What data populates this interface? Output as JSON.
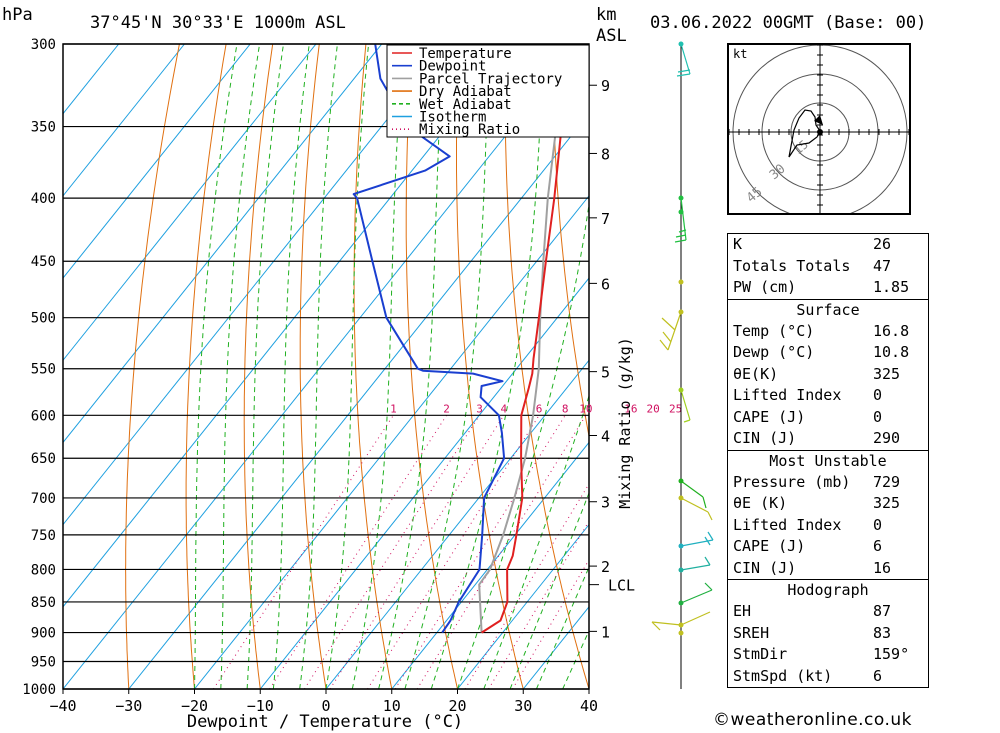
{
  "header": {
    "location": "37°45'N  30°33'E  1000m  ASL",
    "datetime": "03.06.2022  00GMT  (Base: 00)",
    "hpa_unit": "hPa",
    "km_unit": "km",
    "asl_unit": "ASL"
  },
  "chart_data": {
    "type": "skew-t",
    "xlabel": "Dewpoint / Temperature (°C)",
    "ylabel_right": "Mixing Ratio (g/kg)",
    "pressure_levels": [
      300,
      350,
      400,
      450,
      500,
      550,
      600,
      650,
      700,
      750,
      800,
      850,
      900,
      950,
      1000
    ],
    "temp_ticks": [
      -40,
      -30,
      -20,
      -10,
      0,
      10,
      20,
      30,
      40
    ],
    "km_ticks": [
      {
        "label": "9",
        "p": 324
      },
      {
        "label": "8",
        "p": 368
      },
      {
        "label": "7",
        "p": 415
      },
      {
        "label": "6",
        "p": 469
      },
      {
        "label": "5",
        "p": 553
      },
      {
        "label": "4",
        "p": 623
      },
      {
        "label": "3",
        "p": 705
      },
      {
        "label": "2",
        "p": 795
      },
      {
        "label": "1",
        "p": 898
      }
    ],
    "lcl": {
      "label": "LCL",
      "p": 823
    },
    "mixing_ratio_labels": [
      "1",
      "2",
      "3",
      "4",
      "6",
      "8",
      "10",
      "16",
      "20",
      "25"
    ],
    "legend": [
      {
        "name": "Temperature",
        "color": "#e02020"
      },
      {
        "name": "Dewpoint",
        "color": "#1a3fd0"
      },
      {
        "name": "Parcel Trajectory",
        "color": "#a0a0a0"
      },
      {
        "name": "Dry Adiabat",
        "color": "#e07010"
      },
      {
        "name": "Wet Adiabat",
        "color": "#20b020"
      },
      {
        "name": "Isotherm",
        "color": "#1ea0e0"
      },
      {
        "name": "Mixing Ratio",
        "color": "#d01060"
      }
    ],
    "temperature": [
      [
        900,
        16.8
      ],
      [
        880,
        18.2
      ],
      [
        850,
        17.0
      ],
      [
        800,
        13.0
      ],
      [
        780,
        12.2
      ],
      [
        750,
        10.2
      ],
      [
        700,
        6.6
      ],
      [
        650,
        1.6
      ],
      [
        600,
        -3.6
      ],
      [
        570,
        -5.8
      ],
      [
        555,
        -7.0
      ],
      [
        540,
        -8.6
      ],
      [
        500,
        -12.8
      ],
      [
        450,
        -18.6
      ],
      [
        400,
        -25.0
      ],
      [
        350,
        -32.6
      ],
      [
        300,
        -41.6
      ]
    ],
    "dewpoint": [
      [
        900,
        10.8
      ],
      [
        880,
        10.6
      ],
      [
        850,
        9.6
      ],
      [
        800,
        8.8
      ],
      [
        750,
        5.0
      ],
      [
        700,
        0.8
      ],
      [
        650,
        -1.0
      ],
      [
        620,
        -4.4
      ],
      [
        600,
        -7.0
      ],
      [
        580,
        -12.0
      ],
      [
        568,
        -13.2
      ],
      [
        563,
        -10.6
      ],
      [
        555,
        -16.0
      ],
      [
        552,
        -24.0
      ],
      [
        550,
        -25.0
      ],
      [
        500,
        -36.0
      ],
      [
        450,
        -45.0
      ],
      [
        400,
        -55.0
      ],
      [
        397,
        -56.0
      ],
      [
        380,
        -48.0
      ],
      [
        370,
        -46.0
      ],
      [
        350,
        -56.0
      ],
      [
        320,
        -66.0
      ],
      [
        300,
        -71.0
      ]
    ],
    "parcel": [
      [
        900,
        16.8
      ],
      [
        823,
        10.6
      ],
      [
        800,
        10.4
      ],
      [
        750,
        8.2
      ],
      [
        700,
        5.4
      ],
      [
        650,
        2.2
      ],
      [
        600,
        -1.8
      ],
      [
        550,
        -6.6
      ],
      [
        500,
        -12.6
      ],
      [
        450,
        -19.0
      ],
      [
        400,
        -26.0
      ],
      [
        350,
        -33.4
      ],
      [
        300,
        -42.0
      ]
    ]
  },
  "hodograph": {
    "unit_label": "kt",
    "ring_labels": [
      "15",
      "30",
      "45"
    ]
  },
  "indices": {
    "general": [
      {
        "key": "K",
        "val": "26"
      },
      {
        "key": "Totals Totals",
        "val": "47"
      },
      {
        "key": "PW (cm)",
        "val": "1.85"
      }
    ],
    "surface_title": "Surface",
    "surface": [
      {
        "key": "Temp (°C)",
        "val": "16.8"
      },
      {
        "key": "Dewp (°C)",
        "val": "10.8"
      },
      {
        "key": "θE(K)",
        "val": "325"
      },
      {
        "key": "Lifted Index",
        "val": "0"
      },
      {
        "key": "CAPE (J)",
        "val": "0"
      },
      {
        "key": "CIN (J)",
        "val": "290"
      }
    ],
    "mu_title": "Most Unstable",
    "mu": [
      {
        "key": "Pressure (mb)",
        "val": "729"
      },
      {
        "key": "θE (K)",
        "val": "325"
      },
      {
        "key": "Lifted Index",
        "val": "0"
      },
      {
        "key": "CAPE (J)",
        "val": "6"
      },
      {
        "key": "CIN (J)",
        "val": "16"
      }
    ],
    "hodo_title": "Hodograph",
    "hodo": [
      {
        "key": "EH",
        "val": "87"
      },
      {
        "key": "SREH",
        "val": "83"
      },
      {
        "key": "StmDir",
        "val": "159°"
      },
      {
        "key": "StmSpd (kt)",
        "val": "6"
      }
    ]
  },
  "credit": "©weatheronline.co.uk"
}
